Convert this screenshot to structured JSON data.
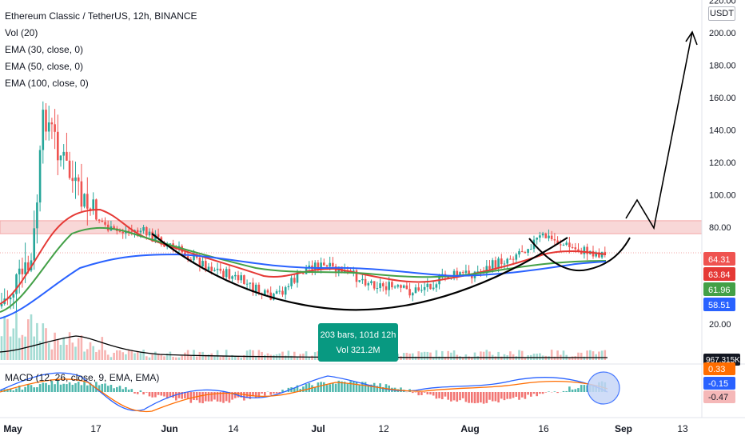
{
  "header": {
    "title": "Ethereum Classic / TetherUS, 12h, BINANCE",
    "indicators": [
      "Vol (20)",
      "EMA (30, close, 0)",
      "EMA (50, close, 0)",
      "EMA (100, close, 0)"
    ],
    "macd_label": "MACD (12, 26, close, 9, EMA, EMA)"
  },
  "axis": {
    "unit": "USDT"
  },
  "measure": {
    "bars": "203 bars, 101d 12h",
    "vol": "Vol 321.2M"
  },
  "colors": {
    "up": "#26a69a",
    "down": "#ef5350",
    "ema30": "#e53935",
    "ema50": "#43a047",
    "ema100": "#2962ff",
    "resistance": "#f8d7d7",
    "macd": "#2962ff",
    "signal": "#ff6d00"
  },
  "chart_data": {
    "type": "candlestick",
    "y_axis_ticks": [
      20,
      80,
      100,
      120,
      140,
      160,
      180,
      200,
      220
    ],
    "x_ticks": [
      "May",
      "17",
      "Jun",
      "14",
      "Jul",
      "12",
      "Aug",
      "16",
      "Sep",
      "13"
    ],
    "resistance_zone": [
      76,
      84
    ],
    "price_labels": [
      {
        "value": "64.31",
        "color": "#ef5350"
      },
      {
        "value": "63.84",
        "color": "#e53935"
      },
      {
        "value": "61.96",
        "color": "#43a047"
      },
      {
        "value": "58.51",
        "color": "#2962ff"
      }
    ],
    "volume_label": "967.315K",
    "macd_labels": [
      {
        "value": "0.33",
        "color": "#ff6d00"
      },
      {
        "value": "-0.15",
        "color": "#2962ff"
      },
      {
        "value": "-0.47",
        "color": "#f5b8b8"
      }
    ],
    "close_approx": [
      {
        "date": "May 1",
        "price": 30
      },
      {
        "date": "May 5",
        "price": 68
      },
      {
        "date": "May 6",
        "price": 150
      },
      {
        "date": "May 10",
        "price": 125
      },
      {
        "date": "May 15",
        "price": 100
      },
      {
        "date": "May 22",
        "price": 72
      },
      {
        "date": "May 28",
        "price": 76
      },
      {
        "date": "Jun 5",
        "price": 71
      },
      {
        "date": "Jun 15",
        "price": 66
      },
      {
        "date": "Jun 25",
        "price": 52
      },
      {
        "date": "Jul 1",
        "price": 62
      },
      {
        "date": "Jul 10",
        "price": 60
      },
      {
        "date": "Jul 20",
        "price": 52
      },
      {
        "date": "Aug 1",
        "price": 60
      },
      {
        "date": "Aug 10",
        "price": 66
      },
      {
        "date": "Aug 16",
        "price": 76
      },
      {
        "date": "Aug 22",
        "price": 68
      },
      {
        "date": "Aug 29",
        "price": 64
      }
    ]
  }
}
